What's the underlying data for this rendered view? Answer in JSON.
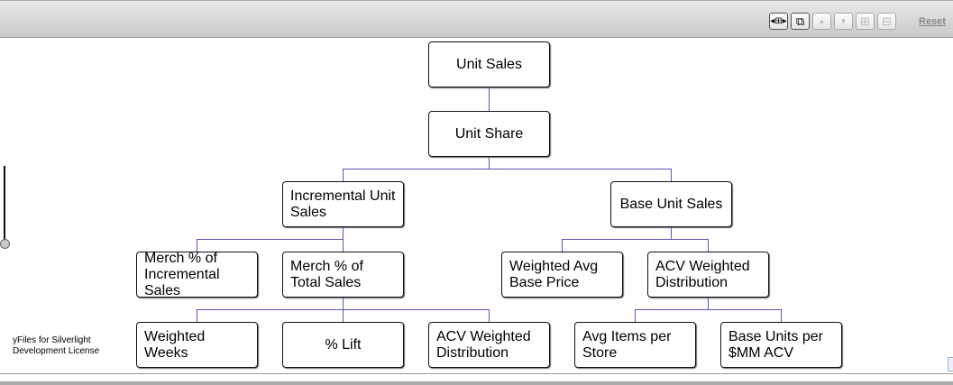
{
  "toolbar": {
    "buttons": [
      {
        "name": "fit-content",
        "icon": "fit-icon",
        "enabled": true
      },
      {
        "name": "overview",
        "icon": "copy-windows-icon",
        "enabled": true
      },
      {
        "name": "move-up",
        "icon": "arrow-up-icon",
        "enabled": false
      },
      {
        "name": "move-down",
        "icon": "arrow-down-icon",
        "enabled": false
      },
      {
        "name": "expand",
        "icon": "plus-box-icon",
        "enabled": false
      },
      {
        "name": "collapse",
        "icon": "minus-box-icon",
        "enabled": false
      }
    ],
    "reset_label": "Reset"
  },
  "diagram": {
    "edge_color": "#5555bb",
    "nodes": [
      {
        "label": "Unit Sales"
      },
      {
        "label": "Unit Share"
      },
      {
        "label": "Incremental Unit Sales"
      },
      {
        "label": "Base Unit Sales"
      },
      {
        "label": "Merch % of Incremental Sales"
      },
      {
        "label": "Merch % of Total Sales"
      },
      {
        "label": "Weighted Avg Base Price"
      },
      {
        "label": "ACV Weighted Distribution"
      },
      {
        "label": "Weighted Weeks"
      },
      {
        "label": "% Lift"
      },
      {
        "label": "ACV Weighted Distribution"
      },
      {
        "label": "Avg Items per Store"
      },
      {
        "label": "Base Units per $MM ACV"
      }
    ],
    "edges": [
      [
        0,
        1
      ],
      [
        1,
        2
      ],
      [
        1,
        3
      ],
      [
        2,
        4
      ],
      [
        2,
        5
      ],
      [
        3,
        6
      ],
      [
        3,
        7
      ],
      [
        5,
        8
      ],
      [
        5,
        9
      ],
      [
        5,
        10
      ],
      [
        7,
        11
      ],
      [
        7,
        12
      ]
    ]
  },
  "license_text": "yFiles for Silverlight Development License"
}
